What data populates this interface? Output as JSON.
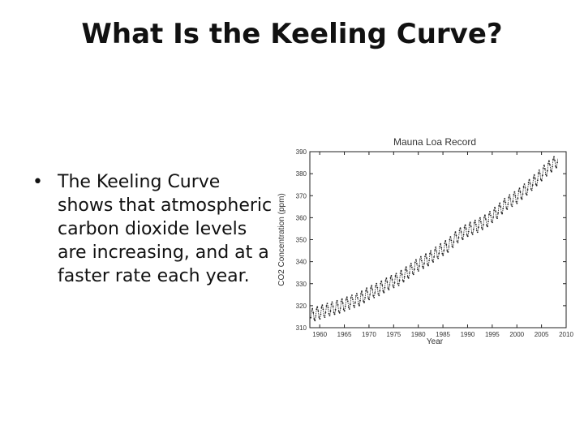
{
  "slide": {
    "title": "What Is the Keeling Curve?",
    "bullet_lines": [
      "The Keeling Curve",
      "shows that atmospheric",
      "carbon dioxide levels",
      "are increasing, and at a",
      "faster rate each year."
    ]
  },
  "chart_data": {
    "type": "line",
    "title": "Mauna Loa Record",
    "xlabel": "Year",
    "ylabel": "CO2 Concentration (ppm)",
    "xlim": [
      1958,
      2010
    ],
    "ylim": [
      310,
      390
    ],
    "x_ticks": [
      1960,
      1965,
      1970,
      1975,
      1980,
      1985,
      1990,
      1995,
      2000,
      2005,
      2010
    ],
    "y_ticks": [
      310,
      320,
      330,
      340,
      350,
      360,
      370,
      380,
      390
    ],
    "grid": false,
    "series": [
      {
        "x": [
          1958,
          1960,
          1962,
          1964,
          1966,
          1968,
          1970,
          1972,
          1974,
          1976,
          1978,
          1980,
          1982,
          1984,
          1986,
          1988,
          1990,
          1992,
          1994,
          1996,
          1998,
          2000,
          2002,
          2004,
          2006,
          2008
        ],
        "values": [
          315.3,
          316.9,
          318.4,
          319.6,
          321.4,
          322.9,
          325.7,
          327.5,
          330.2,
          332.1,
          335.4,
          338.7,
          341.1,
          344.4,
          347.2,
          351.6,
          354.4,
          356.3,
          358.8,
          362.6,
          366.7,
          369.4,
          373.2,
          377.5,
          381.9,
          385.6
        ],
        "seasonal_amplitude_ppm": 3,
        "marker": "dot",
        "color": "#222222"
      }
    ]
  }
}
